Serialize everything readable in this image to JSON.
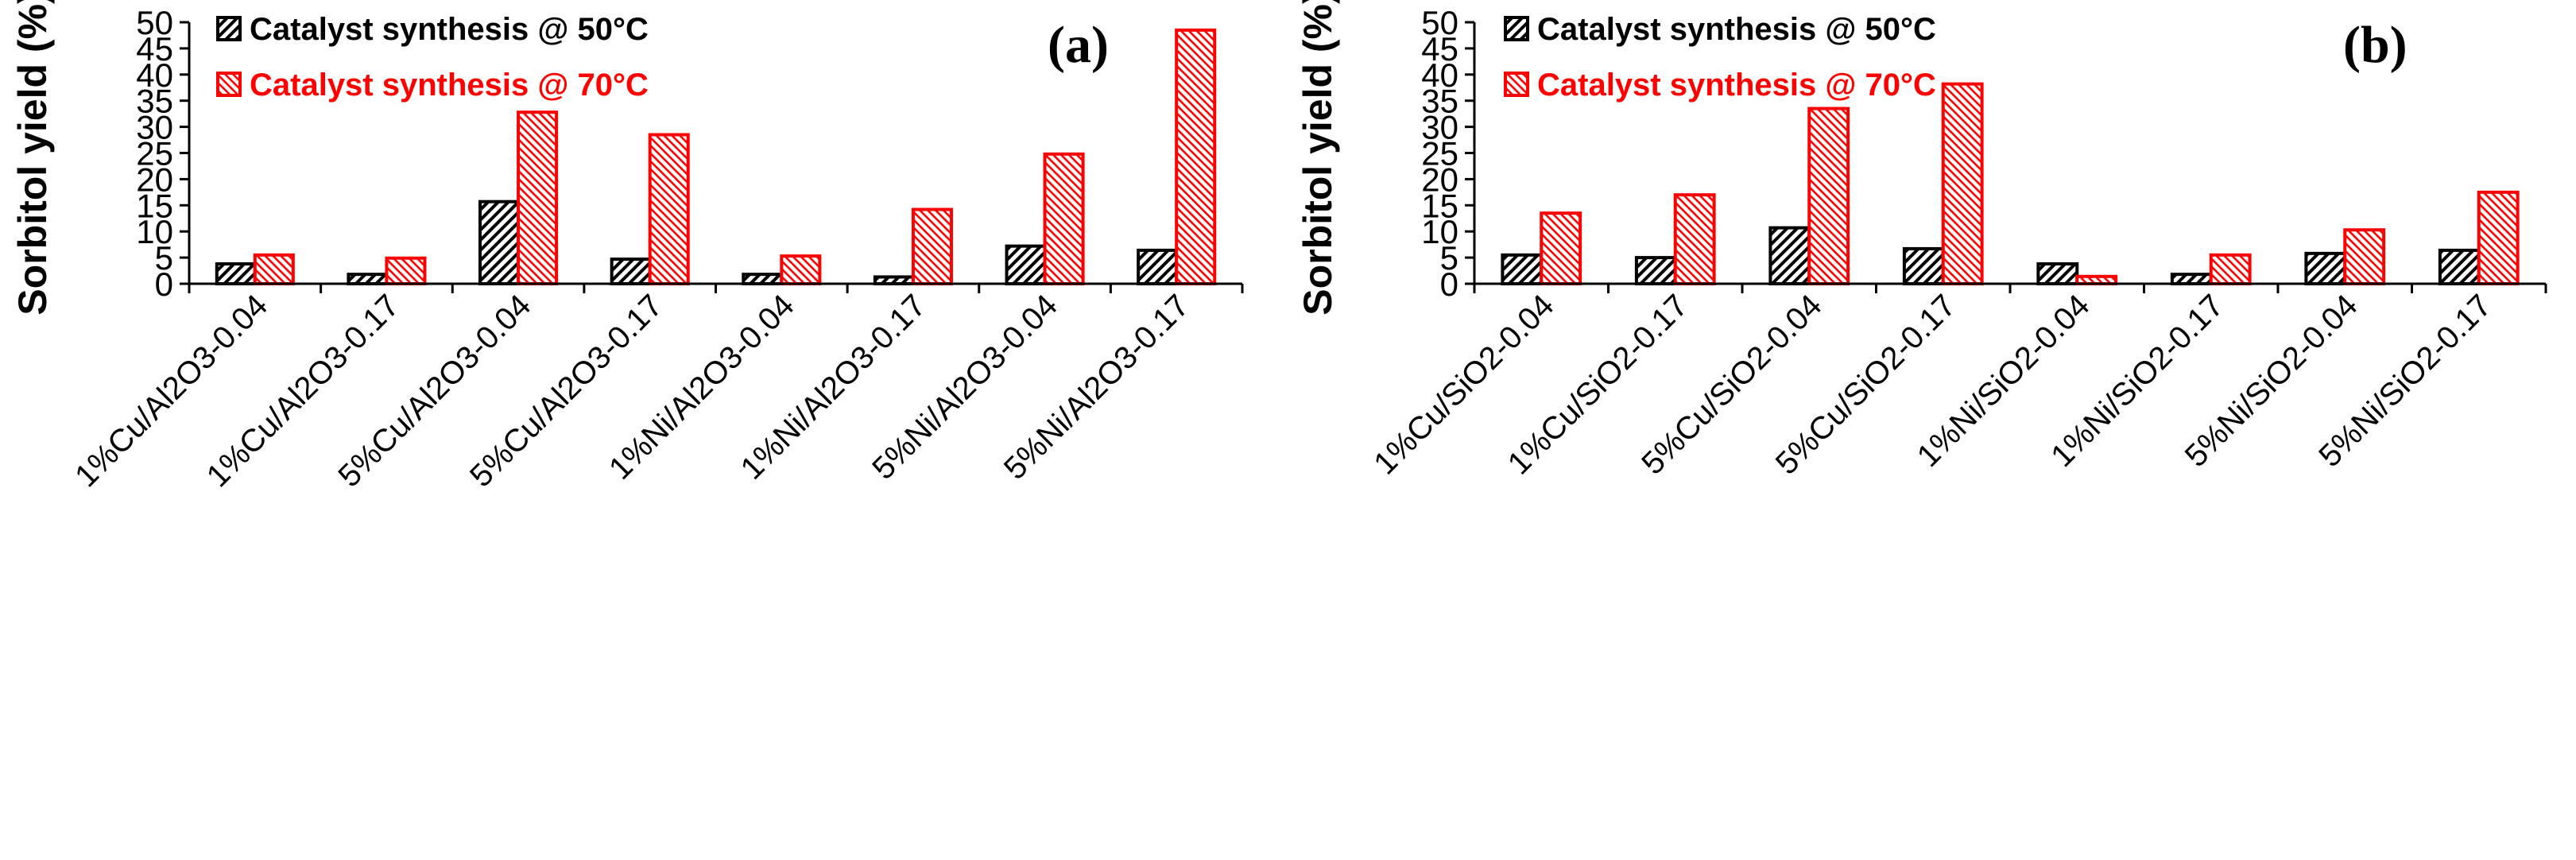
{
  "colors": {
    "series_50": "#000000",
    "series_70": "#ff0000"
  },
  "chart_data": [
    {
      "type": "bar",
      "panel_label": "(a)",
      "title": "",
      "xlabel": "",
      "ylabel": "Sorbitol yield (%)",
      "ylim": [
        0,
        50
      ],
      "yticks": [
        "0",
        "5",
        "10",
        "15",
        "20",
        "25",
        "30",
        "35",
        "40",
        "45",
        "50"
      ],
      "grid": false,
      "legend_position": "top-left",
      "categories": [
        "1%Cu/Al2O3-0.04",
        "1%Cu/Al2O3-0.17",
        "5%Cu/Al2O3-0.04",
        "5%Cu/Al2O3-0.17",
        "1%Ni/Al2O3-0.04",
        "1%Ni/Al2O3-0.17",
        "5%Ni/Al2O3-0.04",
        "5%Ni/Al2O3-0.17"
      ],
      "series": [
        {
          "name": "Catalyst synthesis @ 50°C",
          "values": [
            3.8,
            1.8,
            15.7,
            4.7,
            1.8,
            1.3,
            7.2,
            6.4
          ]
        },
        {
          "name": "Catalyst synthesis @ 70°C",
          "values": [
            5.5,
            4.9,
            32.8,
            28.5,
            5.3,
            14.2,
            24.8,
            48.5
          ]
        }
      ]
    },
    {
      "type": "bar",
      "panel_label": "(b)",
      "title": "",
      "xlabel": "",
      "ylabel": "Sorbitol yield (%)",
      "ylim": [
        0,
        50
      ],
      "yticks": [
        "0",
        "5",
        "10",
        "15",
        "20",
        "25",
        "30",
        "35",
        "40",
        "45",
        "50"
      ],
      "grid": false,
      "legend_position": "top-left",
      "categories": [
        "1%Cu/SiO2-0.04",
        "1%Cu/SiO2-0.17",
        "5%Cu/SiO2-0.04",
        "5%Cu/SiO2-0.17",
        "1%Ni/SiO2-0.04",
        "1%Ni/SiO2-0.17",
        "5%Ni/SiO2-0.04",
        "5%Ni/SiO2-0.17"
      ],
      "series": [
        {
          "name": "Catalyst synthesis @ 50°C",
          "values": [
            5.5,
            5.0,
            10.7,
            6.7,
            3.8,
            1.8,
            5.8,
            6.4
          ]
        },
        {
          "name": "Catalyst synthesis @ 70°C",
          "values": [
            13.5,
            17.0,
            33.5,
            38.2,
            1.4,
            5.5,
            10.3,
            17.5
          ]
        }
      ]
    }
  ]
}
